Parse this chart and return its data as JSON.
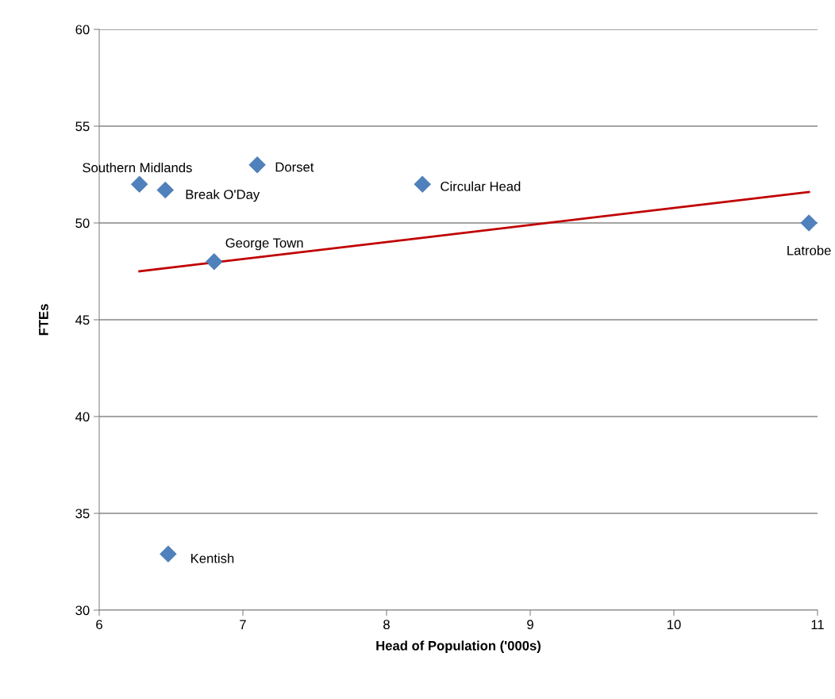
{
  "chart_data": {
    "type": "scatter",
    "xlabel": "Head of Population ('000s)",
    "ylabel": "FTEs",
    "xlim": [
      6,
      11
    ],
    "xticks": [
      6,
      7,
      8,
      9,
      10,
      11
    ],
    "ylim": [
      30,
      60
    ],
    "yticks": [
      30,
      35,
      40,
      45,
      50,
      55,
      60
    ],
    "grid": "y",
    "legend": false,
    "series": [
      {
        "marker": "diamond",
        "color": "#4f81bd",
        "x": [
          6.28,
          6.46,
          7.1,
          8.25,
          6.8,
          10.94,
          6.48
        ],
        "values": [
          52.0,
          51.7,
          53.0,
          52.0,
          48.0,
          50.0,
          32.9
        ]
      },
      {
        "type": "line",
        "color": "#c00000",
        "x": [
          6.28,
          10.94
        ],
        "values": [
          47.5,
          51.6
        ]
      }
    ],
    "annotations": [
      {
        "text": "Southern Midlands",
        "x": 6.28,
        "y": 52.0
      },
      {
        "text": "Break O'Day",
        "x": 6.46,
        "y": 51.7
      },
      {
        "text": "Dorset",
        "x": 7.1,
        "y": 53.0
      },
      {
        "text": "Circular Head",
        "x": 8.25,
        "y": 52.0
      },
      {
        "text": "George Town",
        "x": 6.8,
        "y": 48.0
      },
      {
        "text": "Latrobe",
        "x": 10.94,
        "y": 50.0
      },
      {
        "text": "Kentish",
        "x": 6.48,
        "y": 32.9
      }
    ]
  }
}
